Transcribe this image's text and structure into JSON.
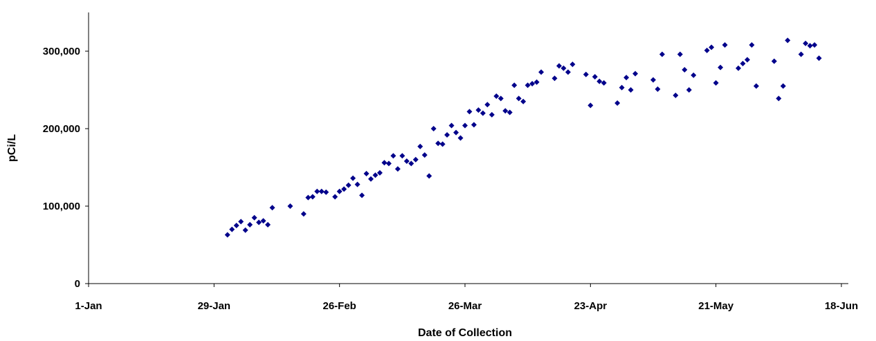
{
  "chart_data": {
    "type": "scatter",
    "title": "",
    "xlabel": "Date of Collection",
    "ylabel": "pCi/L",
    "x_is_date": true,
    "xlim": [
      "1-Jan",
      "22-Jun"
    ],
    "ylim": [
      0,
      350000
    ],
    "grid": false,
    "legend": "none",
    "marker_color": "#00008b",
    "marker_shape": "diamond",
    "x_ticks": [
      {
        "label": "1-Jan",
        "value": 0
      },
      {
        "label": "29-Jan",
        "value": 28
      },
      {
        "label": "26-Feb",
        "value": 56
      },
      {
        "label": "26-Mar",
        "value": 84
      },
      {
        "label": "23-Apr",
        "value": 112
      },
      {
        "label": "21-May",
        "value": 140
      },
      {
        "label": "18-Jun",
        "value": 168
      }
    ],
    "y_ticks": [
      {
        "label": "0",
        "value": 0
      },
      {
        "label": "100,000",
        "value": 100000
      },
      {
        "label": "200,000",
        "value": 200000
      },
      {
        "label": "300,000",
        "value": 300000
      }
    ],
    "points": [
      {
        "x": "1-Feb",
        "y": 63000
      },
      {
        "x": "2-Feb",
        "y": 70000
      },
      {
        "x": "3-Feb",
        "y": 75000
      },
      {
        "x": "4-Feb",
        "y": 80000
      },
      {
        "x": "5-Feb",
        "y": 69000
      },
      {
        "x": "6-Feb",
        "y": 76000
      },
      {
        "x": "7-Feb",
        "y": 85000
      },
      {
        "x": "8-Feb",
        "y": 79000
      },
      {
        "x": "9-Feb",
        "y": 81000
      },
      {
        "x": "10-Feb",
        "y": 76000
      },
      {
        "x": "11-Feb",
        "y": 98000
      },
      {
        "x": "15-Feb",
        "y": 100000
      },
      {
        "x": "18-Feb",
        "y": 90000
      },
      {
        "x": "19-Feb",
        "y": 111000
      },
      {
        "x": "20-Feb",
        "y": 112000
      },
      {
        "x": "21-Feb",
        "y": 119000
      },
      {
        "x": "22-Feb",
        "y": 119000
      },
      {
        "x": "23-Feb",
        "y": 118000
      },
      {
        "x": "25-Feb",
        "y": 112000
      },
      {
        "x": "26-Feb",
        "y": 119000
      },
      {
        "x": "27-Feb",
        "y": 122000
      },
      {
        "x": "28-Feb",
        "y": 127000
      },
      {
        "x": "1-Mar",
        "y": 136000
      },
      {
        "x": "2-Mar",
        "y": 128000
      },
      {
        "x": "3-Mar",
        "y": 114000
      },
      {
        "x": "4-Mar",
        "y": 142000
      },
      {
        "x": "5-Mar",
        "y": 135000
      },
      {
        "x": "6-Mar",
        "y": 140000
      },
      {
        "x": "7-Mar",
        "y": 143000
      },
      {
        "x": "8-Mar",
        "y": 156000
      },
      {
        "x": "9-Mar",
        "y": 155000
      },
      {
        "x": "10-Mar",
        "y": 165000
      },
      {
        "x": "11-Mar",
        "y": 148000
      },
      {
        "x": "12-Mar",
        "y": 165000
      },
      {
        "x": "13-Mar",
        "y": 158000
      },
      {
        "x": "14-Mar",
        "y": 155000
      },
      {
        "x": "15-Mar",
        "y": 160000
      },
      {
        "x": "16-Mar",
        "y": 177000
      },
      {
        "x": "17-Mar",
        "y": 166000
      },
      {
        "x": "18-Mar",
        "y": 139000
      },
      {
        "x": "19-Mar",
        "y": 200000
      },
      {
        "x": "20-Mar",
        "y": 181000
      },
      {
        "x": "21-Mar",
        "y": 180000
      },
      {
        "x": "22-Mar",
        "y": 192000
      },
      {
        "x": "23-Mar",
        "y": 204000
      },
      {
        "x": "24-Mar",
        "y": 195000
      },
      {
        "x": "25-Mar",
        "y": 188000
      },
      {
        "x": "26-Mar",
        "y": 204000
      },
      {
        "x": "27-Mar",
        "y": 222000
      },
      {
        "x": "28-Mar",
        "y": 205000
      },
      {
        "x": "29-Mar",
        "y": 224000
      },
      {
        "x": "30-Mar",
        "y": 220000
      },
      {
        "x": "31-Mar",
        "y": 231000
      },
      {
        "x": "1-Apr",
        "y": 218000
      },
      {
        "x": "2-Apr",
        "y": 242000
      },
      {
        "x": "3-Apr",
        "y": 239000
      },
      {
        "x": "4-Apr",
        "y": 223000
      },
      {
        "x": "5-Apr",
        "y": 221000
      },
      {
        "x": "6-Apr",
        "y": 256000
      },
      {
        "x": "7-Apr",
        "y": 239000
      },
      {
        "x": "8-Apr",
        "y": 235000
      },
      {
        "x": "9-Apr",
        "y": 256000
      },
      {
        "x": "10-Apr",
        "y": 258000
      },
      {
        "x": "11-Apr",
        "y": 260000
      },
      {
        "x": "12-Apr",
        "y": 273000
      },
      {
        "x": "15-Apr",
        "y": 265000
      },
      {
        "x": "16-Apr",
        "y": 281000
      },
      {
        "x": "17-Apr",
        "y": 278000
      },
      {
        "x": "18-Apr",
        "y": 273000
      },
      {
        "x": "19-Apr",
        "y": 283000
      },
      {
        "x": "22-Apr",
        "y": 270000
      },
      {
        "x": "23-Apr",
        "y": 230000
      },
      {
        "x": "24-Apr",
        "y": 267000
      },
      {
        "x": "25-Apr",
        "y": 261000
      },
      {
        "x": "26-Apr",
        "y": 259000
      },
      {
        "x": "29-Apr",
        "y": 233000
      },
      {
        "x": "30-Apr",
        "y": 253000
      },
      {
        "x": "1-May",
        "y": 266000
      },
      {
        "x": "2-May",
        "y": 250000
      },
      {
        "x": "3-May",
        "y": 271000
      },
      {
        "x": "7-May",
        "y": 263000
      },
      {
        "x": "8-May",
        "y": 251000
      },
      {
        "x": "9-May",
        "y": 296000
      },
      {
        "x": "12-May",
        "y": 243000
      },
      {
        "x": "13-May",
        "y": 296000
      },
      {
        "x": "14-May",
        "y": 276000
      },
      {
        "x": "15-May",
        "y": 250000
      },
      {
        "x": "16-May",
        "y": 269000
      },
      {
        "x": "19-May",
        "y": 301000
      },
      {
        "x": "20-May",
        "y": 305000
      },
      {
        "x": "21-May",
        "y": 259000
      },
      {
        "x": "22-May",
        "y": 279000
      },
      {
        "x": "23-May",
        "y": 308000
      },
      {
        "x": "26-May",
        "y": 278000
      },
      {
        "x": "27-May",
        "y": 284000
      },
      {
        "x": "28-May",
        "y": 289000
      },
      {
        "x": "29-May",
        "y": 308000
      },
      {
        "x": "30-May",
        "y": 255000
      },
      {
        "x": "3-Jun",
        "y": 287000
      },
      {
        "x": "4-Jun",
        "y": 239000
      },
      {
        "x": "5-Jun",
        "y": 255000
      },
      {
        "x": "6-Jun",
        "y": 314000
      },
      {
        "x": "9-Jun",
        "y": 296000
      },
      {
        "x": "10-Jun",
        "y": 310000
      },
      {
        "x": "11-Jun",
        "y": 307000
      },
      {
        "x": "12-Jun",
        "y": 308000
      },
      {
        "x": "13-Jun",
        "y": 291000
      }
    ]
  }
}
